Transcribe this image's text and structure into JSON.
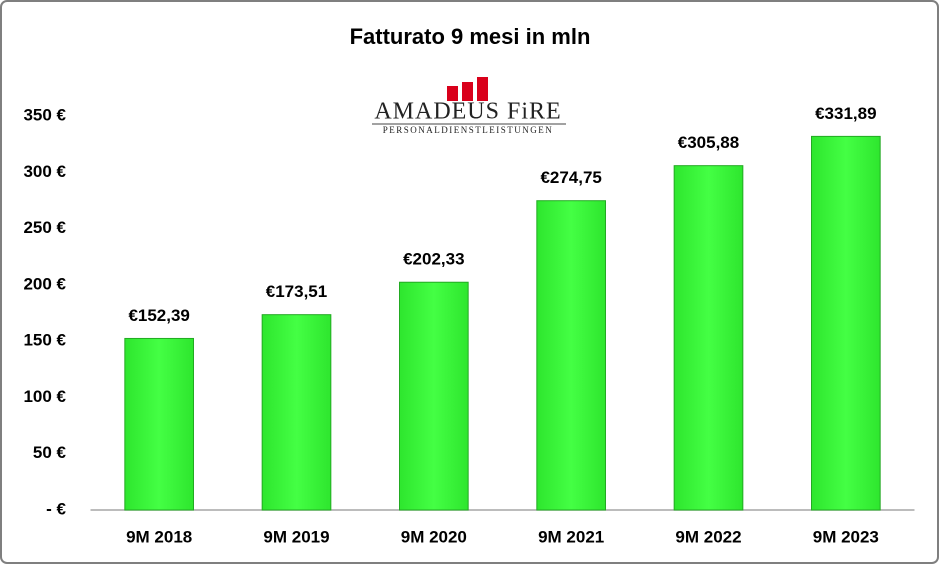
{
  "chart_data": {
    "type": "bar",
    "title": "Fatturato 9 mesi in mln",
    "categories": [
      "9M 2018",
      "9M 2019",
      "9M 2020",
      "9M 2021",
      "9M 2022",
      "9M 2023"
    ],
    "values": [
      152.39,
      173.51,
      202.33,
      274.75,
      305.88,
      331.89
    ],
    "value_labels": [
      "€152,39",
      "€173,51",
      "€202,33",
      "€274,75",
      "€305,88",
      "€331,89"
    ],
    "color": "#33ff33",
    "ylim": [
      0,
      350
    ],
    "yticks": [
      {
        "value": 0,
        "label": "- €"
      },
      {
        "value": 50,
        "label": "50 €"
      },
      {
        "value": 100,
        "label": "100 €"
      },
      {
        "value": 150,
        "label": "150 €"
      },
      {
        "value": 200,
        "label": "200 €"
      },
      {
        "value": 250,
        "label": "250 €"
      },
      {
        "value": 300,
        "label": "300 €"
      },
      {
        "value": 350,
        "label": "350 €"
      }
    ],
    "grid": false
  },
  "logo": {
    "name": "AMADEUS FiRE",
    "tagline": "PERSONALDIENSTLEISTUNGEN"
  }
}
